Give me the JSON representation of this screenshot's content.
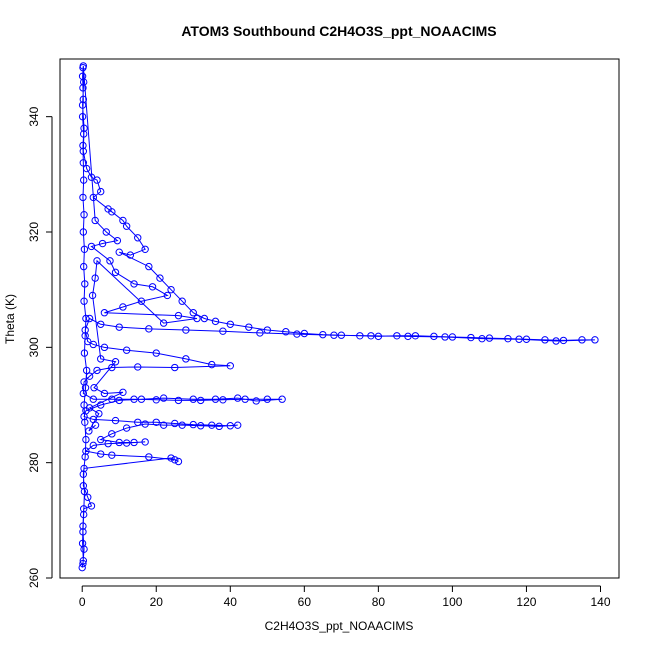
{
  "chart_data": {
    "type": "scatter",
    "title": "ATOM3 Southbound C2H4O3S_ppt_NOAACIMS",
    "xlabel": "C2H4O3S_ppt_NOAACIMS",
    "ylabel": "Theta (K)",
    "xlim": [
      -6,
      145
    ],
    "ylim": [
      260,
      350
    ],
    "x_ticks": [
      0,
      20,
      40,
      60,
      80,
      100,
      120,
      140
    ],
    "y_ticks": [
      260,
      280,
      300,
      320,
      340
    ],
    "grid": false,
    "legend": "none",
    "marker": "open-circle",
    "lines": true,
    "color": "#0000ff",
    "series": [
      {
        "points": [
          [
            0.2,
            348.5
          ],
          [
            0.4,
            346
          ],
          [
            0.1,
            342
          ],
          [
            0.5,
            338
          ],
          [
            0.3,
            334
          ],
          [
            1.2,
            331
          ],
          [
            2.5,
            329.5
          ],
          [
            4.0,
            329
          ],
          [
            5.0,
            327
          ],
          [
            3.0,
            326
          ],
          [
            7.0,
            324
          ],
          [
            8.0,
            323.5
          ],
          [
            11.0,
            322
          ],
          [
            12.0,
            321
          ],
          [
            15.0,
            319
          ],
          [
            17.0,
            317
          ],
          [
            13.0,
            316
          ],
          [
            10.0,
            316.5
          ],
          [
            18.0,
            314
          ],
          [
            21.0,
            312
          ],
          [
            24.0,
            310
          ],
          [
            27.0,
            308
          ],
          [
            30.0,
            306
          ],
          [
            33.0,
            305
          ],
          [
            36.0,
            304.5
          ],
          [
            40.0,
            304
          ],
          [
            45.0,
            303.5
          ],
          [
            50.0,
            303
          ],
          [
            55.0,
            302.7
          ],
          [
            60.0,
            302.4
          ],
          [
            65.0,
            302.2
          ],
          [
            70.0,
            302.1
          ],
          [
            75.0,
            302
          ],
          [
            80.0,
            301.9
          ],
          [
            85.0,
            302
          ],
          [
            90.0,
            302
          ],
          [
            95.0,
            301.9
          ],
          [
            100.0,
            301.8
          ],
          [
            105.0,
            301.7
          ],
          [
            110.0,
            301.6
          ],
          [
            115.0,
            301.5
          ],
          [
            120.0,
            301.4
          ],
          [
            125.0,
            301.3
          ],
          [
            130.0,
            301.2
          ],
          [
            135.0,
            301.3
          ],
          [
            138.5,
            301.3
          ],
          [
            128.0,
            301.1
          ],
          [
            118.0,
            301.4
          ],
          [
            108.0,
            301.5
          ],
          [
            98.0,
            301.8
          ],
          [
            88.0,
            301.9
          ],
          [
            78.0,
            302
          ],
          [
            68.0,
            302.1
          ],
          [
            58.0,
            302.3
          ],
          [
            48.0,
            302.5
          ],
          [
            38.0,
            302.8
          ],
          [
            28.0,
            303
          ],
          [
            18.0,
            303.2
          ],
          [
            10.0,
            303.5
          ],
          [
            5.0,
            304
          ],
          [
            2.0,
            305
          ],
          [
            0.8,
            303
          ],
          [
            1.5,
            301
          ],
          [
            3.0,
            300.5
          ],
          [
            6.0,
            300
          ],
          [
            12.0,
            299.5
          ],
          [
            20.0,
            299
          ],
          [
            28.0,
            298
          ],
          [
            35.0,
            297
          ],
          [
            40.0,
            296.8
          ],
          [
            25.0,
            296.5
          ],
          [
            15.0,
            296.6
          ],
          [
            8.0,
            296.5
          ],
          [
            4.0,
            296
          ],
          [
            2.0,
            295
          ],
          [
            0.5,
            294
          ],
          [
            0.3,
            292
          ],
          [
            3.0,
            291
          ],
          [
            8.0,
            291
          ],
          [
            14.0,
            291
          ],
          [
            20.0,
            290.9
          ],
          [
            26.0,
            290.8
          ],
          [
            32.0,
            290.8
          ],
          [
            38.0,
            290.9
          ],
          [
            44.0,
            291
          ],
          [
            50.0,
            291
          ],
          [
            54.0,
            291
          ],
          [
            47.0,
            290.7
          ],
          [
            42.0,
            291.2
          ],
          [
            36.0,
            291
          ],
          [
            30.0,
            291
          ],
          [
            22.0,
            291.2
          ],
          [
            16.0,
            291
          ],
          [
            10.0,
            290.8
          ],
          [
            5.0,
            290
          ],
          [
            1.0,
            289
          ],
          [
            0.5,
            288
          ],
          [
            3.0,
            287.5
          ],
          [
            9.0,
            287.3
          ],
          [
            15.0,
            287
          ],
          [
            20.0,
            287
          ],
          [
            25.0,
            286.8
          ],
          [
            30.0,
            286.6
          ],
          [
            35.0,
            286.5
          ],
          [
            40.0,
            286.4
          ],
          [
            42.0,
            286.5
          ],
          [
            37.0,
            286.3
          ],
          [
            32.0,
            286.4
          ],
          [
            27.0,
            286.5
          ],
          [
            22.0,
            286.5
          ],
          [
            17.0,
            286.7
          ],
          [
            12.0,
            286
          ],
          [
            8.0,
            285
          ],
          [
            5.0,
            284
          ],
          [
            10.0,
            283.5
          ],
          [
            14.0,
            283.5
          ],
          [
            17.0,
            283.6
          ],
          [
            12.0,
            283.4
          ],
          [
            7.0,
            283.3
          ],
          [
            3.0,
            283
          ],
          [
            1.0,
            282
          ],
          [
            5.0,
            281.5
          ],
          [
            8.0,
            281.3
          ],
          [
            18.0,
            281
          ],
          [
            25.0,
            280.5
          ],
          [
            26.0,
            280.2
          ],
          [
            24.0,
            280.8
          ],
          [
            0.5,
            279
          ],
          [
            0.3,
            276
          ],
          [
            1.5,
            274
          ],
          [
            2.5,
            272.5
          ],
          [
            0.4,
            272
          ],
          [
            0.2,
            269
          ],
          [
            0.1,
            266
          ],
          [
            0.3,
            263
          ],
          [
            0.0,
            261.8
          ],
          [
            0.2,
            262.5
          ],
          [
            0.5,
            265
          ],
          [
            0.2,
            268
          ],
          [
            0.4,
            271
          ],
          [
            0.6,
            275
          ],
          [
            0.3,
            278
          ],
          [
            0.8,
            281
          ],
          [
            1.0,
            284
          ],
          [
            0.7,
            287
          ],
          [
            0.5,
            290
          ],
          [
            0.9,
            293
          ],
          [
            1.2,
            296
          ],
          [
            0.6,
            299
          ],
          [
            0.8,
            302
          ],
          [
            1.0,
            305
          ],
          [
            0.5,
            308
          ],
          [
            0.7,
            311
          ],
          [
            0.4,
            314
          ],
          [
            0.6,
            317
          ],
          [
            0.3,
            320
          ],
          [
            0.5,
            323
          ],
          [
            0.2,
            326
          ],
          [
            0.4,
            329
          ],
          [
            0.3,
            332
          ],
          [
            0.2,
            335
          ],
          [
            0.4,
            337
          ],
          [
            0.1,
            340
          ],
          [
            0.3,
            343
          ],
          [
            0.2,
            345
          ],
          [
            0.1,
            347
          ],
          [
            0.3,
            348.8
          ],
          [
            3.5,
            322
          ],
          [
            6.5,
            320
          ],
          [
            9.5,
            318.5
          ],
          [
            5.5,
            318
          ],
          [
            2.5,
            317.5
          ],
          [
            7.5,
            315
          ],
          [
            9.0,
            313
          ],
          [
            14.0,
            311
          ],
          [
            19.0,
            310.5
          ],
          [
            23.0,
            309
          ],
          [
            16.0,
            308
          ],
          [
            11.0,
            307
          ],
          [
            6.0,
            306
          ],
          [
            26.0,
            305.5
          ],
          [
            31.0,
            305
          ],
          [
            22.0,
            304.2
          ],
          [
            4.0,
            315
          ],
          [
            3.5,
            312
          ],
          [
            2.8,
            309
          ],
          [
            5.0,
            298
          ],
          [
            9.0,
            297.5
          ],
          [
            3.2,
            293
          ],
          [
            6.0,
            292
          ],
          [
            11.0,
            292.2
          ],
          [
            2.0,
            289.5
          ],
          [
            4.5,
            288.5
          ],
          [
            1.8,
            285.5
          ],
          [
            3.6,
            286.5
          ]
        ]
      }
    ]
  }
}
